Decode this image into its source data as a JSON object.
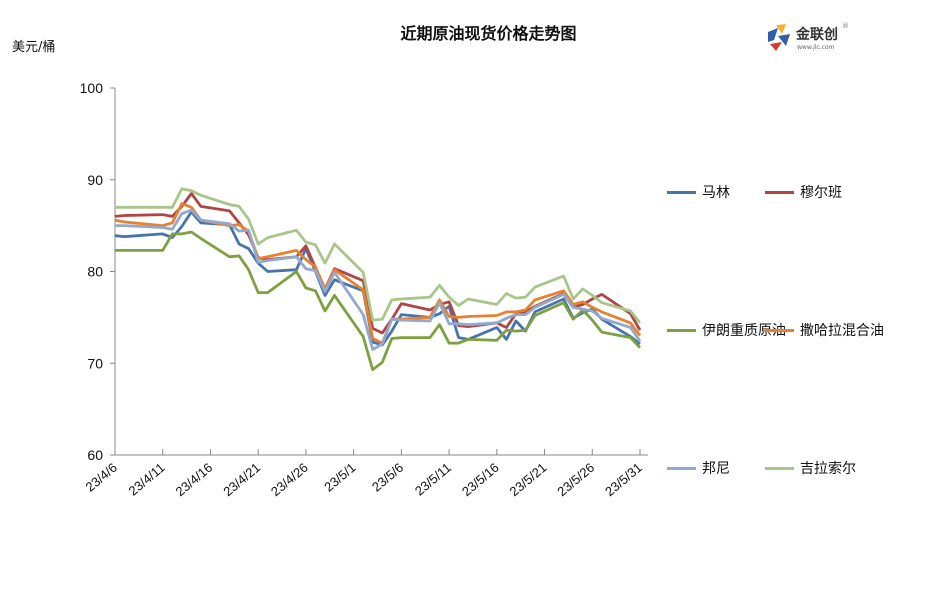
{
  "header": {
    "title": "近期原油现货价格走势图",
    "unit": "美元/桶",
    "logo_text": "金联创",
    "logo_sub": "www.jlc.com",
    "logo_reg": "®"
  },
  "chart_data": {
    "type": "line",
    "title": "近期原油现货价格走势图",
    "xlabel": "",
    "ylabel": "美元/桶",
    "ylim": [
      60,
      100
    ],
    "yticks": [
      60,
      70,
      80,
      90,
      100
    ],
    "grid": false,
    "legend_position": "right",
    "x_tick_labels": [
      "23/4/6",
      "23/4/11",
      "23/4/16",
      "23/4/21",
      "23/4/26",
      "23/5/1",
      "23/5/6",
      "23/5/11",
      "23/5/16",
      "23/5/21",
      "23/5/26",
      "23/5/31"
    ],
    "x_day_offsets": [
      0,
      1,
      5,
      6,
      7,
      8,
      9,
      12,
      13,
      14,
      15,
      16,
      19,
      20,
      21,
      22,
      23,
      26,
      27,
      28,
      29,
      30,
      33,
      34,
      35,
      36,
      37,
      40,
      41,
      42,
      43,
      44,
      47,
      48,
      49,
      50,
      51,
      54,
      55
    ],
    "series": [
      {
        "name": "马林",
        "color": "#4774AA",
        "values": [
          83.9,
          83.8,
          84.1,
          83.7,
          84.9,
          86.5,
          85.3,
          85.1,
          83.0,
          82.5,
          80.9,
          80.0,
          80.2,
          82.5,
          80.0,
          77.4,
          79.1,
          77.9,
          72.3,
          72.0,
          73.5,
          75.3,
          75.0,
          75.4,
          76.2,
          72.8,
          72.6,
          73.9,
          72.6,
          74.6,
          73.5,
          75.6,
          77.0,
          74.9,
          75.5,
          75.9,
          74.8,
          72.9,
          72.1
        ]
      },
      {
        "name": "穆尔班",
        "color": "#B04545",
        "values": [
          86.0,
          86.1,
          86.2,
          86.0,
          87.1,
          88.5,
          87.1,
          86.6,
          85.3,
          84.0,
          81.5,
          81.3,
          81.6,
          82.8,
          80.4,
          78.1,
          80.3,
          79.0,
          73.8,
          73.3,
          74.8,
          76.5,
          75.8,
          76.4,
          76.7,
          74.1,
          74.0,
          74.4,
          73.9,
          75.4,
          75.6,
          76.2,
          77.6,
          76.1,
          76.4,
          77.0,
          77.5,
          75.4,
          73.6
        ]
      },
      {
        "name": "伊朗重质原油",
        "color": "#7FA040",
        "values": [
          82.3,
          82.3,
          82.3,
          84.1,
          84.1,
          84.3,
          83.6,
          81.6,
          81.7,
          80.2,
          77.7,
          77.7,
          80.0,
          78.2,
          77.9,
          75.7,
          77.4,
          72.9,
          69.3,
          70.1,
          72.7,
          72.8,
          72.8,
          74.2,
          72.2,
          72.2,
          72.6,
          72.5,
          73.6,
          73.5,
          73.6,
          75.2,
          76.6,
          74.8,
          75.8,
          74.7,
          73.4,
          72.8,
          71.7
        ]
      },
      {
        "name": "撒哈拉混合油",
        "color": "#E7812F",
        "values": [
          85.6,
          85.4,
          85.0,
          85.3,
          87.4,
          87.0,
          85.6,
          85.0,
          85.1,
          84.4,
          81.4,
          81.6,
          82.3,
          81.3,
          80.5,
          78.1,
          80.2,
          78.0,
          72.7,
          72.2,
          74.8,
          74.8,
          75.0,
          76.9,
          75.1,
          75.0,
          75.1,
          75.2,
          75.6,
          75.6,
          75.8,
          76.9,
          77.9,
          76.4,
          76.7,
          76.1,
          75.6,
          74.4,
          73.0
        ]
      },
      {
        "name": "邦尼",
        "color": "#92A8CD",
        "values": [
          85.0,
          85.0,
          84.8,
          84.6,
          86.3,
          86.7,
          85.6,
          85.2,
          84.4,
          84.5,
          81.0,
          81.2,
          81.6,
          80.3,
          80.1,
          77.8,
          79.9,
          75.3,
          71.5,
          72.1,
          74.8,
          74.7,
          74.6,
          76.6,
          74.3,
          74.3,
          74.2,
          74.4,
          74.9,
          75.3,
          75.3,
          76.1,
          77.5,
          76.1,
          75.9,
          75.7,
          74.9,
          73.9,
          72.4
        ]
      },
      {
        "name": "吉拉索尔",
        "color": "#A9C68A",
        "values": [
          87.0,
          87.0,
          87.0,
          87.0,
          89.0,
          88.8,
          88.3,
          87.3,
          87.1,
          85.7,
          83.0,
          83.7,
          84.5,
          83.2,
          82.9,
          80.9,
          83.0,
          79.9,
          74.7,
          74.8,
          76.9,
          77.0,
          77.2,
          78.5,
          77.2,
          76.3,
          77.0,
          76.4,
          77.6,
          77.1,
          77.2,
          78.3,
          79.5,
          77.0,
          78.1,
          77.4,
          76.6,
          75.7,
          74.4
        ]
      }
    ]
  },
  "legend": {
    "items": [
      {
        "label": "马林",
        "color": "#4774AA"
      },
      {
        "label": "穆尔班",
        "color": "#B04545"
      },
      {
        "label": "伊朗重质原油",
        "color": "#7FA040"
      },
      {
        "label": "撒哈拉混合油",
        "color": "#E7812F"
      },
      {
        "label": "邦尼",
        "color": "#92A8CD"
      },
      {
        "label": "吉拉索尔",
        "color": "#A9C68A"
      }
    ]
  }
}
